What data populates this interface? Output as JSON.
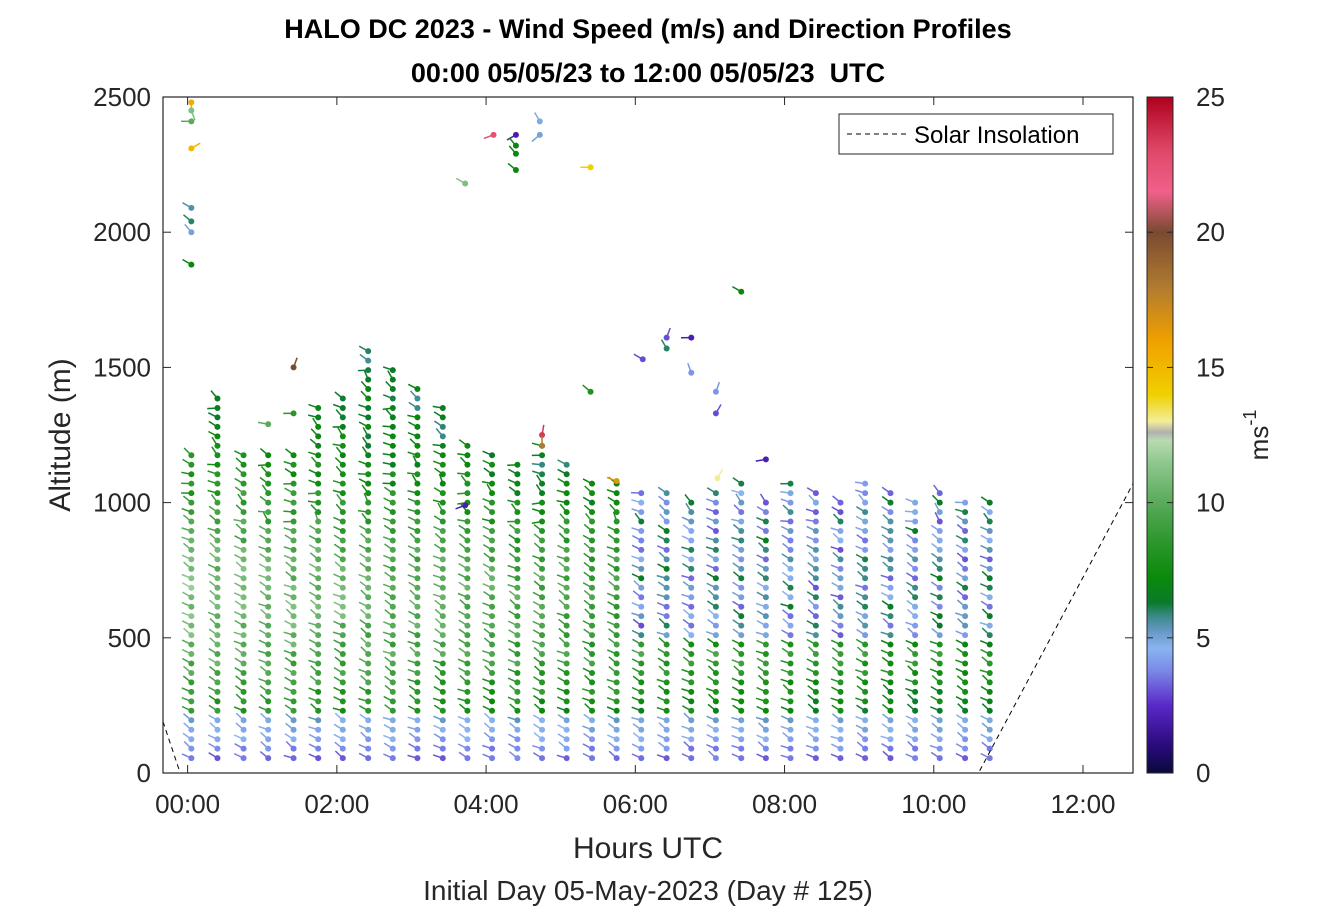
{
  "chart_data": {
    "type": "scatter",
    "subtype": "wind-barb profile (stick vectors)",
    "title": "HALO DC 2023 - Wind Speed (m/s) and Direction Profiles",
    "subtitle": "00:00 05/05/23 to 12:00 05/05/23  UTC",
    "xlabel": "Hours UTC",
    "xlabel2": "Initial Day 05-May-2023 (Day # 125)",
    "ylabel": "Altitude (m)",
    "xlim": [
      -0.33,
      12.67
    ],
    "ylim": [
      0,
      2500
    ],
    "xticks": [
      0,
      2,
      4,
      6,
      8,
      10,
      12
    ],
    "xtick_labels": [
      "00:00",
      "02:00",
      "04:00",
      "06:00",
      "08:00",
      "10:00",
      "12:00"
    ],
    "yticks": [
      0,
      500,
      1000,
      1500,
      2000,
      2500
    ],
    "ytick_labels": [
      "0",
      "500",
      "1000",
      "1500",
      "2000",
      "2500"
    ],
    "grid": false,
    "legend": {
      "placement": "top-right",
      "entries": [
        "Solar Insolation"
      ]
    },
    "colorbar": {
      "label": "ms",
      "label_superscript": "-1",
      "range": [
        0,
        25
      ],
      "ticks": [
        0,
        5,
        10,
        15,
        20,
        25
      ],
      "tick_labels": [
        "0",
        "5",
        "10",
        "15",
        "20",
        "25"
      ],
      "stops": [
        {
          "v": 0,
          "c": "#0a0a3c"
        },
        {
          "v": 1,
          "c": "#2a0a7a"
        },
        {
          "v": 2.5,
          "c": "#5a28c8"
        },
        {
          "v": 3.8,
          "c": "#7a8ae8"
        },
        {
          "v": 4.6,
          "c": "#8ab4f0"
        },
        {
          "v": 5.2,
          "c": "#6a9ac8"
        },
        {
          "v": 5.8,
          "c": "#3a8a8a"
        },
        {
          "v": 6.3,
          "c": "#0a7a2a"
        },
        {
          "v": 7.2,
          "c": "#0a8a0a"
        },
        {
          "v": 8.5,
          "c": "#2a962a"
        },
        {
          "v": 10,
          "c": "#5aaa5a"
        },
        {
          "v": 11.5,
          "c": "#90c890"
        },
        {
          "v": 12.3,
          "c": "#b8dab0"
        },
        {
          "v": 12.6,
          "c": "#b0b0b0"
        },
        {
          "v": 13,
          "c": "#f2ee98"
        },
        {
          "v": 14,
          "c": "#f0d000"
        },
        {
          "v": 16,
          "c": "#f0a000"
        },
        {
          "v": 18,
          "c": "#b07a30"
        },
        {
          "v": 20,
          "c": "#7a4a30"
        },
        {
          "v": 21.5,
          "c": "#f0608a"
        },
        {
          "v": 23,
          "c": "#e04868"
        },
        {
          "v": 25,
          "c": "#b0001e"
        }
      ]
    },
    "solar_insolation_line": {
      "name": "Solar Insolation",
      "x": [
        -0.33,
        -0.1,
        10.6,
        12.67
      ],
      "y": [
        190,
        0,
        0,
        1070
      ],
      "style": "dashed",
      "color": "#000000"
    },
    "profile_times_hours": [
      0.05,
      0.4,
      0.75,
      1.08,
      1.42,
      1.75,
      2.08,
      2.42,
      2.75,
      3.08,
      3.42,
      3.75,
      4.08,
      4.42,
      4.75,
      5.08,
      5.42,
      5.75,
      6.08,
      6.42,
      6.75,
      7.08,
      7.42,
      7.75,
      8.08,
      8.42,
      8.75,
      9.08,
      9.42,
      9.75,
      10.08,
      10.42,
      10.75
    ],
    "profile_top_altitude_m": [
      1200,
      1400,
      1200,
      1190,
      1200,
      1350,
      1400,
      1580,
      1520,
      1420,
      1360,
      1240,
      1200,
      1150,
      1240,
      1150,
      1100,
      1080,
      1050,
      1050,
      1000,
      1050,
      1100,
      1000,
      1100,
      1050,
      1000,
      1100,
      1050,
      1000,
      1050,
      1000,
      1000
    ],
    "sample_spacing_m": 35,
    "barb_length": 0.25,
    "direction_note": "sticks oriented roughly NW-SE in the boundary layer, varying aloft",
    "isolated_points": [
      {
        "x": 0.05,
        "y": 2480,
        "speed": 15.5,
        "dir": 180
      },
      {
        "x": 0.05,
        "y": 2450,
        "speed": 11,
        "dir": 160
      },
      {
        "x": 0.05,
        "y": 2410,
        "speed": 10,
        "dir": 270
      },
      {
        "x": 0.05,
        "y": 2310,
        "speed": 15,
        "dir": 60
      },
      {
        "x": 0.05,
        "y": 2090,
        "speed": 5.5,
        "dir": 300
      },
      {
        "x": 0.05,
        "y": 2040,
        "speed": 6,
        "dir": 310
      },
      {
        "x": 0.05,
        "y": 2000,
        "speed": 5,
        "dir": 320
      },
      {
        "x": 0.05,
        "y": 1880,
        "speed": 7,
        "dir": 300
      },
      {
        "x": 3.72,
        "y": 2180,
        "speed": 11,
        "dir": 300
      },
      {
        "x": 4.1,
        "y": 2360,
        "speed": 22.5,
        "dir": 250
      },
      {
        "x": 4.4,
        "y": 2360,
        "speed": 2,
        "dir": 240
      },
      {
        "x": 4.4,
        "y": 2320,
        "speed": 7,
        "dir": 320
      },
      {
        "x": 4.4,
        "y": 2290,
        "speed": 7,
        "dir": 320
      },
      {
        "x": 4.4,
        "y": 2230,
        "speed": 7,
        "dir": 310
      },
      {
        "x": 4.72,
        "y": 2410,
        "speed": 4.8,
        "dir": 330
      },
      {
        "x": 4.72,
        "y": 2360,
        "speed": 5,
        "dir": 230
      },
      {
        "x": 5.4,
        "y": 2240,
        "speed": 14,
        "dir": 270
      },
      {
        "x": 7.42,
        "y": 1780,
        "speed": 7,
        "dir": 300
      },
      {
        "x": 6.42,
        "y": 1610,
        "speed": 3,
        "dir": 20
      },
      {
        "x": 6.75,
        "y": 1610,
        "speed": 2,
        "dir": 270
      },
      {
        "x": 6.1,
        "y": 1530,
        "speed": 3,
        "dir": 300
      },
      {
        "x": 6.42,
        "y": 1570,
        "speed": 6,
        "dir": 330
      },
      {
        "x": 6.75,
        "y": 1480,
        "speed": 4,
        "dir": 340
      },
      {
        "x": 7.08,
        "y": 1410,
        "speed": 4,
        "dir": 20
      },
      {
        "x": 7.08,
        "y": 1330,
        "speed": 3,
        "dir": 30
      },
      {
        "x": 5.4,
        "y": 1410,
        "speed": 8,
        "dir": 310
      },
      {
        "x": 1.42,
        "y": 1500,
        "speed": 20,
        "dir": 20
      },
      {
        "x": 1.08,
        "y": 1290,
        "speed": 10,
        "dir": 280
      },
      {
        "x": 1.42,
        "y": 1330,
        "speed": 8.5,
        "dir": 270
      },
      {
        "x": 4.75,
        "y": 1250,
        "speed": 23.5,
        "dir": 10
      },
      {
        "x": 4.75,
        "y": 1210,
        "speed": 18,
        "dir": 0
      },
      {
        "x": 5.75,
        "y": 1080,
        "speed": 16.5,
        "dir": 290
      },
      {
        "x": 3.72,
        "y": 990,
        "speed": 2,
        "dir": 250
      },
      {
        "x": 7.1,
        "y": 1090,
        "speed": 13,
        "dir": 30
      },
      {
        "x": 7.75,
        "y": 1160,
        "speed": 2,
        "dir": 260
      }
    ]
  }
}
